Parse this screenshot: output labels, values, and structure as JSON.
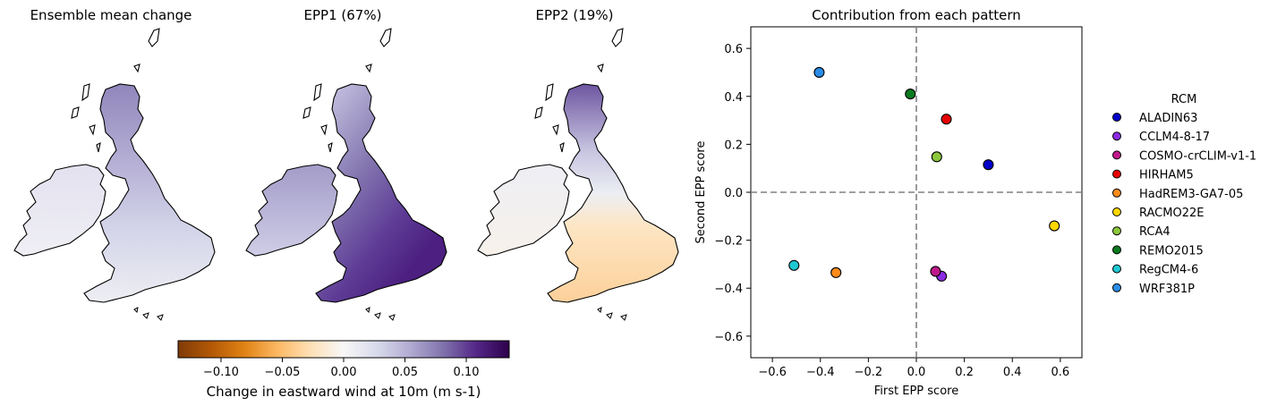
{
  "maps": {
    "panels": [
      {
        "title": "Ensemble mean change",
        "pattern": "mean"
      },
      {
        "title": "EPP1 (67%)",
        "pattern": "epp1"
      },
      {
        "title": "EPP2 (19%)",
        "pattern": "epp2"
      }
    ],
    "colorbar": {
      "label": "Change in eastward wind at 10m (m s-1)",
      "colormap": "PuOr",
      "range": [
        -0.135,
        0.135
      ],
      "ticks": [
        -0.1,
        -0.05,
        0.0,
        0.05,
        0.1
      ],
      "tick_labels": [
        "−0.10",
        "−0.05",
        "0.00",
        "0.05",
        "0.10"
      ]
    }
  },
  "chart_data": {
    "type": "scatter",
    "title": "Contribution from each pattern",
    "xlabel": "First EPP score",
    "ylabel": "Second EPP score",
    "xlim": [
      -0.69,
      0.69
    ],
    "ylim": [
      -0.69,
      0.69
    ],
    "xticks": [
      -0.6,
      -0.4,
      -0.2,
      0.0,
      0.2,
      0.4,
      0.6
    ],
    "yticks": [
      -0.6,
      -0.4,
      -0.2,
      0.0,
      0.2,
      0.4,
      0.6
    ],
    "xtick_labels": [
      "−0.6",
      "−0.4",
      "−0.2",
      "0.0",
      "0.2",
      "0.4",
      "0.6"
    ],
    "ytick_labels": [
      "−0.6",
      "−0.4",
      "−0.2",
      "0.0",
      "0.2",
      "0.4",
      "0.6"
    ],
    "zero_lines": true,
    "legend": {
      "title": "RCM",
      "placement": "right"
    },
    "series": [
      {
        "name": "ALADIN63",
        "color": "#0000c8",
        "x": 0.3,
        "y": 0.115
      },
      {
        "name": "CCLM4-8-17",
        "color": "#8c2be2",
        "x": 0.105,
        "y": -0.35
      },
      {
        "name": "COSMO-crCLIM-v1-1",
        "color": "#c0188c",
        "x": 0.08,
        "y": -0.33
      },
      {
        "name": "HIRHAM5",
        "color": "#e60000",
        "x": 0.125,
        "y": 0.305
      },
      {
        "name": "HadREM3-GA7-05",
        "color": "#ff8c1a",
        "x": -0.335,
        "y": -0.335
      },
      {
        "name": "RACMO22E",
        "color": "#ffd700",
        "x": 0.575,
        "y": -0.14
      },
      {
        "name": "RCA4",
        "color": "#8cc83c",
        "x": 0.085,
        "y": 0.148
      },
      {
        "name": "REMO2015",
        "color": "#0a7a1e",
        "x": -0.025,
        "y": 0.41
      },
      {
        "name": "RegCM4-6",
        "color": "#1ec8d2",
        "x": -0.51,
        "y": -0.305
      },
      {
        "name": "WRF381P",
        "color": "#2a8ce6",
        "x": -0.405,
        "y": 0.5
      }
    ]
  }
}
